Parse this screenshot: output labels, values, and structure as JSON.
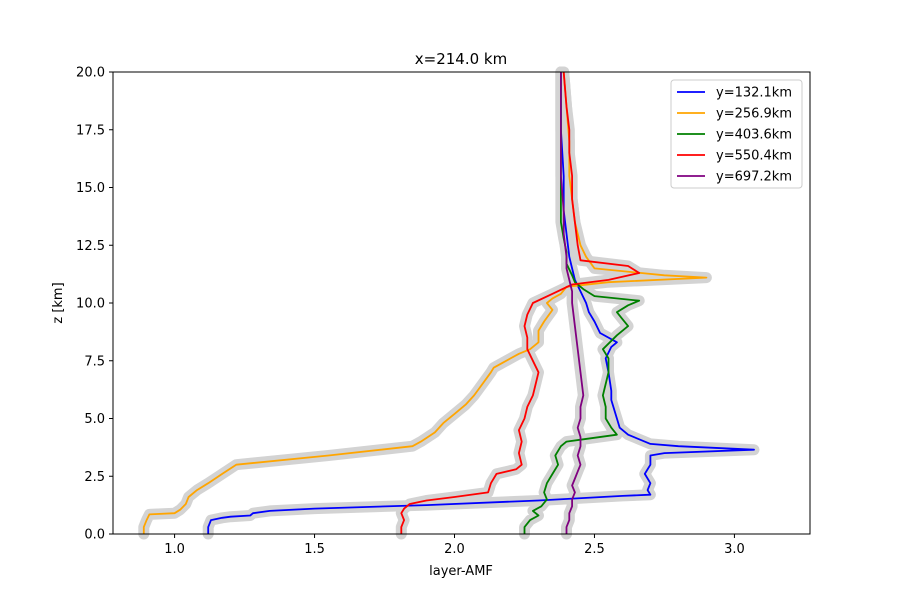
{
  "chart_data": {
    "type": "line",
    "title": "x=214.0 km",
    "xlabel": "layer-AMF",
    "ylabel": "z [km]",
    "xlim": [
      0.78,
      3.27
    ],
    "ylim": [
      0,
      20
    ],
    "xticks": [
      1.0,
      1.5,
      2.0,
      2.5,
      3.0
    ],
    "xtick_labels": [
      "1.0",
      "1.5",
      "2.0",
      "2.5",
      "3.0"
    ],
    "yticks": [
      0,
      2.5,
      5,
      7.5,
      10,
      12.5,
      15,
      17.5,
      20
    ],
    "ytick_labels": [
      "0.0",
      "2.5",
      "5.0",
      "7.5",
      "10.0",
      "12.5",
      "15.0",
      "17.5",
      "20.0"
    ],
    "grid": false,
    "legend_position": "top-right",
    "uncertainty_band_color": "#d3d3d3",
    "series": [
      {
        "name": "y=132.1km",
        "color": "#0000ff",
        "x": [
          1.12,
          1.12,
          1.13,
          1.17,
          1.2,
          1.27,
          1.28,
          1.34,
          1.5,
          1.9,
          2.3,
          2.6,
          2.7,
          2.69,
          2.7,
          2.68,
          2.7,
          2.7,
          2.75,
          3.07,
          2.8,
          2.7,
          2.62,
          2.59,
          2.58,
          2.57,
          2.56,
          2.56,
          2.55,
          2.54,
          2.56,
          2.58,
          2.55,
          2.52,
          2.5,
          2.48,
          2.47,
          2.45,
          2.43,
          2.42,
          2.41,
          2.4,
          2.39,
          2.39,
          2.38,
          2.38
        ],
        "y": [
          0.0,
          0.3,
          0.6,
          0.7,
          0.75,
          0.8,
          0.9,
          1.0,
          1.1,
          1.25,
          1.45,
          1.65,
          1.7,
          1.9,
          2.2,
          2.6,
          3.0,
          3.4,
          3.5,
          3.65,
          3.8,
          3.9,
          4.3,
          4.6,
          5.0,
          5.4,
          5.8,
          6.2,
          7.0,
          7.6,
          8.1,
          8.3,
          8.5,
          8.7,
          9.2,
          9.6,
          10.0,
          10.5,
          11.0,
          11.5,
          12.0,
          13.0,
          14.0,
          15.5,
          17.5,
          20.0
        ]
      },
      {
        "name": "y=256.9km",
        "color": "#ffa500",
        "x": [
          0.89,
          0.89,
          0.9,
          0.91,
          1.0,
          1.02,
          1.04,
          1.05,
          1.08,
          1.12,
          1.17,
          1.22,
          1.55,
          1.85,
          1.88,
          1.93,
          1.96,
          2.0,
          2.04,
          2.07,
          2.1,
          2.13,
          2.14,
          2.17,
          2.2,
          2.23,
          2.27,
          2.3,
          2.3,
          2.32,
          2.35,
          2.33,
          2.35,
          2.38,
          2.4,
          2.55,
          2.9,
          2.75,
          2.5,
          2.47,
          2.45,
          2.44,
          2.43,
          2.42,
          2.41,
          2.41,
          2.4,
          2.39
        ],
        "y": [
          0.0,
          0.3,
          0.6,
          0.85,
          0.9,
          1.05,
          1.3,
          1.6,
          1.9,
          2.2,
          2.6,
          3.0,
          3.4,
          3.8,
          4.0,
          4.4,
          4.8,
          5.2,
          5.6,
          6.0,
          6.5,
          7.0,
          7.2,
          7.4,
          7.6,
          7.8,
          8.0,
          8.3,
          8.8,
          9.2,
          9.7,
          10.0,
          10.2,
          10.4,
          10.7,
          10.9,
          11.1,
          11.2,
          11.5,
          12.0,
          12.5,
          13.0,
          13.5,
          14.5,
          15.5,
          17.0,
          18.5,
          20.0
        ]
      },
      {
        "name": "y=403.6km",
        "color": "#008000",
        "x": [
          2.25,
          2.25,
          2.27,
          2.3,
          2.28,
          2.31,
          2.33,
          2.32,
          2.33,
          2.35,
          2.37,
          2.36,
          2.38,
          2.4,
          2.46,
          2.58,
          2.56,
          2.54,
          2.54,
          2.53,
          2.54,
          2.55,
          2.55,
          2.53,
          2.58,
          2.62,
          2.6,
          2.58,
          2.62,
          2.66,
          2.5,
          2.46,
          2.43,
          2.42,
          2.4,
          2.4,
          2.39,
          2.38,
          2.38,
          2.38,
          2.38
        ],
        "y": [
          0.0,
          0.3,
          0.6,
          0.8,
          1.0,
          1.2,
          1.5,
          1.8,
          2.2,
          2.6,
          3.0,
          3.4,
          3.8,
          4.0,
          4.1,
          4.3,
          4.6,
          5.0,
          5.5,
          6.0,
          6.5,
          7.0,
          7.6,
          8.0,
          8.6,
          9.0,
          9.3,
          9.6,
          9.9,
          10.1,
          10.3,
          10.6,
          10.9,
          11.2,
          11.7,
          12.2,
          12.8,
          13.5,
          15.0,
          17.5,
          20.0
        ]
      },
      {
        "name": "y=550.4km",
        "color": "#ff0000",
        "x": [
          1.81,
          1.81,
          1.82,
          1.81,
          1.82,
          1.84,
          1.9,
          2.0,
          2.12,
          2.13,
          2.15,
          2.22,
          2.24,
          2.23,
          2.24,
          2.23,
          2.25,
          2.26,
          2.28,
          2.29,
          2.3,
          2.28,
          2.26,
          2.26,
          2.25,
          2.26,
          2.28,
          2.35,
          2.42,
          2.55,
          2.66,
          2.62,
          2.45,
          2.44,
          2.43,
          2.42,
          2.42,
          2.41,
          2.41,
          2.4,
          2.39
        ],
        "y": [
          0.0,
          0.3,
          0.6,
          0.9,
          1.1,
          1.3,
          1.45,
          1.6,
          1.8,
          2.2,
          2.6,
          2.8,
          3.0,
          3.5,
          4.0,
          4.5,
          5.0,
          5.5,
          6.0,
          6.5,
          7.0,
          7.5,
          8.0,
          8.5,
          9.0,
          9.5,
          10.0,
          10.4,
          10.8,
          11.0,
          11.3,
          11.6,
          11.85,
          12.5,
          13.5,
          14.5,
          15.5,
          16.5,
          17.5,
          18.5,
          20.0
        ]
      },
      {
        "name": "y=697.2km",
        "color": "#800080",
        "x": [
          2.4,
          2.4,
          2.41,
          2.41,
          2.42,
          2.42,
          2.43,
          2.42,
          2.43,
          2.44,
          2.45,
          2.44,
          2.45,
          2.45,
          2.44,
          2.45,
          2.45,
          2.46,
          2.45,
          2.44,
          2.43,
          2.42,
          2.42,
          2.41,
          2.4,
          2.4,
          2.39,
          2.39,
          2.38,
          2.38,
          2.38
        ],
        "y": [
          0.0,
          0.3,
          0.6,
          0.9,
          1.2,
          1.5,
          1.8,
          2.1,
          2.4,
          2.7,
          3.0,
          3.4,
          3.8,
          4.2,
          4.6,
          5.0,
          5.5,
          6.0,
          7.0,
          8.0,
          9.0,
          10.0,
          10.5,
          11.0,
          11.5,
          12.0,
          13.0,
          14.0,
          15.5,
          17.5,
          20.0
        ]
      }
    ]
  }
}
